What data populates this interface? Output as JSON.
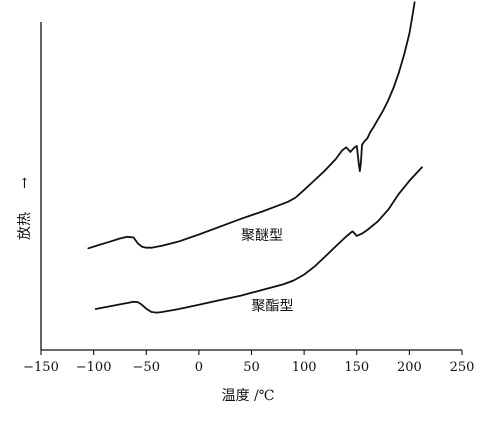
{
  "chart_data": {
    "type": "line",
    "title": "",
    "xlabel": "温度 /℃",
    "ylabel": "放热",
    "ylabel_arrow": "→",
    "xlim": [
      -150,
      250
    ],
    "ylim": [
      0,
      100
    ],
    "xticks": [
      -150,
      -100,
      -50,
      0,
      50,
      100,
      150,
      200,
      250
    ],
    "xtick_labels": [
      "−150",
      "−100",
      "−50",
      "0",
      "50",
      "100",
      "150",
      "200",
      "250"
    ],
    "grid": false,
    "series": [
      {
        "name": "聚醚型",
        "x": [
          -105,
          -95,
          -85,
          -75,
          -68,
          -62,
          -58,
          -54,
          -50,
          -45,
          -35,
          -20,
          0,
          20,
          40,
          60,
          75,
          85,
          92,
          100,
          110,
          120,
          130,
          136,
          140,
          144,
          148,
          150,
          152,
          153,
          154,
          155,
          157,
          160,
          163,
          166,
          170,
          175,
          180,
          185,
          190,
          195,
          200,
          203,
          205
        ],
        "y": [
          31,
          32,
          33,
          34,
          34.5,
          34.3,
          32.5,
          31.5,
          31.2,
          31.2,
          31.8,
          33,
          35.2,
          37.6,
          40,
          42.2,
          44,
          45.2,
          46.5,
          48.8,
          51.8,
          54.8,
          58.2,
          60.8,
          61.8,
          60.4,
          61.8,
          62.2,
          56.5,
          54.5,
          57.5,
          62.5,
          63.5,
          64.5,
          66.5,
          68,
          70.2,
          73,
          76.2,
          80,
          84.5,
          90,
          96.5,
          102,
          106
        ]
      },
      {
        "name": "聚酯型",
        "x": [
          -98,
          -90,
          -80,
          -70,
          -62,
          -58,
          -55,
          -50,
          -45,
          -40,
          -35,
          -20,
          0,
          20,
          40,
          60,
          80,
          90,
          100,
          110,
          120,
          130,
          140,
          146,
          150,
          155,
          160,
          170,
          180,
          190,
          200,
          212
        ],
        "y": [
          12.5,
          13,
          13.6,
          14.2,
          14.7,
          14.6,
          14,
          12.6,
          11.6,
          11.4,
          11.6,
          12.4,
          13.8,
          15.2,
          16.6,
          18.3,
          20,
          21.2,
          23,
          25.5,
          28.5,
          31.6,
          34.6,
          36.2,
          34.8,
          35.5,
          36.6,
          39.2,
          42.8,
          47.6,
          51.6,
          55.7
        ]
      }
    ],
    "annotations": [
      {
        "text": "聚醚型",
        "x": 60,
        "y": 33.5
      },
      {
        "text": "聚酯型",
        "x": 70,
        "y": 12
      }
    ]
  }
}
